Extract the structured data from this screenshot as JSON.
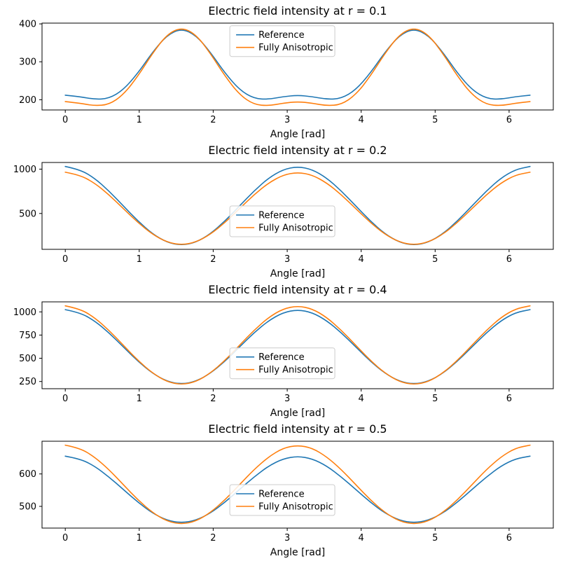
{
  "figure": {
    "background": "#ffffff"
  },
  "colors": {
    "reference": "#1f77b4",
    "fully_anisotropic": "#ff7f0e",
    "axis": "#000000",
    "legend_border": "#cccccc"
  },
  "chart_data": [
    {
      "type": "line",
      "title": "Electric field intensity at r = 0.1",
      "xlabel": "Angle [rad]",
      "ylabel": "",
      "xlim": [
        -0.314,
        6.597
      ],
      "ylim": [
        173,
        402
      ],
      "xticks": [
        0,
        1,
        2,
        3,
        4,
        5,
        6
      ],
      "yticks": [
        200,
        300,
        400
      ],
      "grid": false,
      "legend": {
        "labels": [
          "Reference",
          "Fully Anisotropic"
        ],
        "fx": 0.47,
        "fy": 0.03
      },
      "x": [
        0,
        0.196,
        0.393,
        0.589,
        0.785,
        0.982,
        1.178,
        1.374,
        1.571,
        1.767,
        1.963,
        2.16,
        2.356,
        2.553,
        2.749,
        2.945,
        3.142,
        3.338,
        3.534,
        3.73,
        3.927,
        4.123,
        4.32,
        4.516,
        4.712,
        4.909,
        5.105,
        5.301,
        5.498,
        5.694,
        5.89,
        6.087,
        6.283
      ],
      "series": [
        {
          "name": "Reference",
          "color": "#1f77b4",
          "values": [
            212,
            208,
            201,
            203,
            226,
            270,
            325,
            370,
            388,
            370,
            325,
            270,
            226,
            203,
            201,
            208,
            212,
            208,
            201,
            203,
            226,
            270,
            325,
            370,
            388,
            370,
            325,
            270,
            226,
            203,
            201,
            208,
            212
          ]
        },
        {
          "name": "Fully Anisotropic",
          "color": "#ff7f0e",
          "values": [
            195,
            191,
            184,
            187,
            213,
            262,
            322,
            372,
            391,
            372,
            322,
            262,
            213,
            187,
            184,
            191,
            195,
            191,
            184,
            187,
            213,
            262,
            322,
            372,
            391,
            372,
            322,
            262,
            213,
            187,
            184,
            191,
            195
          ]
        }
      ]
    },
    {
      "type": "line",
      "title": "Electric field intensity at r = 0.2",
      "xlabel": "Angle [rad]",
      "ylabel": "",
      "xlim": [
        -0.314,
        6.597
      ],
      "ylim": [
        95,
        1075
      ],
      "xticks": [
        0,
        1,
        2,
        3,
        4,
        5,
        6
      ],
      "yticks": [
        500,
        1000
      ],
      "grid": false,
      "legend": {
        "labels": [
          "Reference",
          "Fully Anisotropic"
        ],
        "fx": 0.47,
        "fy": 0.5
      },
      "x": [
        0,
        0.196,
        0.393,
        0.589,
        0.785,
        0.982,
        1.178,
        1.374,
        1.571,
        1.767,
        1.963,
        2.16,
        2.356,
        2.553,
        2.749,
        2.945,
        3.142,
        3.338,
        3.534,
        3.73,
        3.927,
        4.123,
        4.32,
        4.516,
        4.712,
        4.909,
        5.105,
        5.301,
        5.498,
        5.694,
        5.89,
        6.087,
        6.283
      ],
      "series": [
        {
          "name": "Reference",
          "color": "#1f77b4",
          "values": [
            1030,
            996,
            900,
            755,
            585,
            415,
            270,
            174,
            140,
            174,
            270,
            415,
            585,
            755,
            900,
            996,
            1030,
            996,
            900,
            755,
            585,
            415,
            270,
            174,
            140,
            174,
            270,
            415,
            585,
            755,
            900,
            996,
            1030
          ]
        },
        {
          "name": "Fully Anisotropic",
          "color": "#ff7f0e",
          "values": [
            965,
            934,
            845,
            712,
            555,
            398,
            265,
            176,
            145,
            176,
            265,
            398,
            555,
            712,
            845,
            934,
            965,
            934,
            845,
            712,
            555,
            398,
            265,
            176,
            145,
            176,
            265,
            398,
            555,
            712,
            845,
            934,
            965
          ]
        }
      ]
    },
    {
      "type": "line",
      "title": "Electric field intensity at r = 0.4",
      "xlabel": "Angle [rad]",
      "ylabel": "",
      "xlim": [
        -0.314,
        6.597
      ],
      "ylim": [
        172,
        1108
      ],
      "xticks": [
        0,
        1,
        2,
        3,
        4,
        5,
        6
      ],
      "yticks": [
        250,
        500,
        750,
        1000
      ],
      "grid": false,
      "legend": {
        "labels": [
          "Reference",
          "Fully Anisotropic"
        ],
        "fx": 0.47,
        "fy": 0.53
      },
      "x": [
        0,
        0.196,
        0.393,
        0.589,
        0.785,
        0.982,
        1.178,
        1.374,
        1.571,
        1.767,
        1.963,
        2.16,
        2.356,
        2.553,
        2.749,
        2.945,
        3.142,
        3.338,
        3.534,
        3.73,
        3.927,
        4.123,
        4.32,
        4.516,
        4.712,
        4.909,
        5.105,
        5.301,
        5.498,
        5.694,
        5.89,
        6.087,
        6.283
      ],
      "series": [
        {
          "name": "Reference",
          "color": "#1f77b4",
          "values": [
            1024,
            993,
            906,
            776,
            622,
            468,
            338,
            251,
            220,
            251,
            338,
            468,
            622,
            776,
            906,
            993,
            1024,
            993,
            906,
            776,
            622,
            468,
            338,
            251,
            220,
            251,
            338,
            468,
            622,
            776,
            906,
            993,
            1024
          ]
        },
        {
          "name": "Fully Anisotropic",
          "color": "#ff7f0e",
          "values": [
            1065,
            1033,
            941,
            803,
            640,
            477,
            340,
            247,
            215,
            247,
            340,
            477,
            640,
            803,
            941,
            1033,
            1065,
            1033,
            941,
            803,
            640,
            477,
            340,
            247,
            215,
            247,
            340,
            477,
            640,
            803,
            941,
            1033,
            1065
          ]
        }
      ]
    },
    {
      "type": "line",
      "title": "Electric field intensity at r = 0.5",
      "xlabel": "Angle [rad]",
      "ylabel": "",
      "xlim": [
        -0.314,
        6.597
      ],
      "ylim": [
        433,
        701
      ],
      "xticks": [
        0,
        1,
        2,
        3,
        4,
        5,
        6
      ],
      "yticks": [
        500,
        600
      ],
      "grid": false,
      "legend": {
        "labels": [
          "Reference",
          "Fully Anisotropic"
        ],
        "fx": 0.47,
        "fy": 0.5
      },
      "x": [
        0,
        0.196,
        0.393,
        0.589,
        0.785,
        0.982,
        1.178,
        1.374,
        1.571,
        1.767,
        1.963,
        2.16,
        2.356,
        2.553,
        2.749,
        2.945,
        3.142,
        3.338,
        3.534,
        3.73,
        3.927,
        4.123,
        4.32,
        4.516,
        4.712,
        4.909,
        5.105,
        5.301,
        5.498,
        5.694,
        5.89,
        6.087,
        6.283
      ],
      "series": [
        {
          "name": "Reference",
          "color": "#1f77b4",
          "values": [
            655,
            647,
            625,
            591,
            552,
            513,
            479,
            457,
            449,
            457,
            479,
            513,
            552,
            591,
            625,
            647,
            655,
            647,
            625,
            591,
            552,
            513,
            479,
            457,
            449,
            457,
            479,
            513,
            552,
            591,
            625,
            647,
            655
          ]
        },
        {
          "name": "Fully Anisotropic",
          "color": "#ff7f0e",
          "values": [
            689,
            680,
            653,
            614,
            567,
            520,
            481,
            454,
            445,
            454,
            481,
            520,
            567,
            614,
            653,
            680,
            689,
            680,
            653,
            614,
            567,
            520,
            481,
            454,
            445,
            454,
            481,
            520,
            567,
            614,
            653,
            680,
            689
          ]
        }
      ]
    }
  ]
}
